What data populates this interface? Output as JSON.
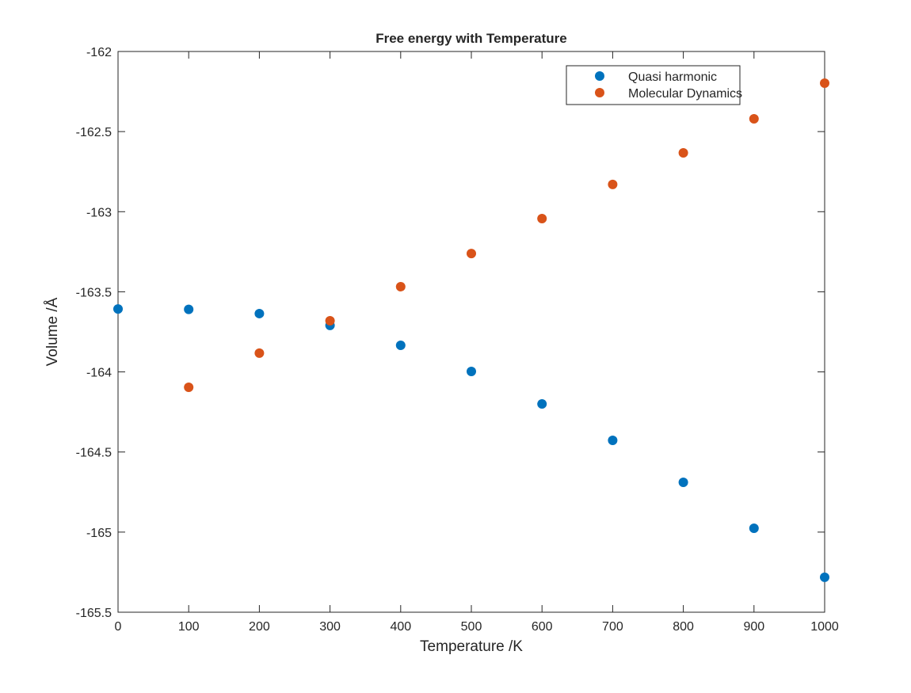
{
  "chart_data": {
    "type": "scatter",
    "title": "Free energy with Temperature",
    "xlabel": "Temperature /K",
    "ylabel": "Volume /Å",
    "xlim": [
      0,
      1000
    ],
    "ylim": [
      -165.5,
      -162
    ],
    "xticks": [
      0,
      100,
      200,
      300,
      400,
      500,
      600,
      700,
      800,
      900,
      1000
    ],
    "yticks": [
      -165.5,
      -165,
      -164.5,
      -164,
      -163.5,
      -163,
      -162.5,
      -162
    ],
    "xtick_labels": [
      "0",
      "100",
      "200",
      "300",
      "400",
      "500",
      "600",
      "700",
      "800",
      "900",
      "1000"
    ],
    "ytick_labels": [
      "-165.5",
      "-165",
      "-164.5",
      "-164",
      "-163.5",
      "-163",
      "-162.5",
      "-162"
    ],
    "grid": false,
    "legend_position": "top-right",
    "series": [
      {
        "name": "Quasi harmonic",
        "color": "#0072BD",
        "x": [
          0,
          100,
          200,
          300,
          400,
          500,
          600,
          700,
          800,
          900,
          1000
        ],
        "y": [
          -163.607,
          -163.61,
          -163.636,
          -163.71,
          -163.834,
          -163.997,
          -164.2,
          -164.427,
          -164.689,
          -164.976,
          -165.282
        ]
      },
      {
        "name": "Molecular Dynamics",
        "color": "#D95319",
        "x": [
          100,
          200,
          300,
          400,
          500,
          600,
          700,
          800,
          900,
          1000
        ],
        "y": [
          -164.096,
          -163.883,
          -163.681,
          -163.468,
          -163.261,
          -163.043,
          -162.83,
          -162.633,
          -162.42,
          -162.198
        ]
      }
    ]
  }
}
